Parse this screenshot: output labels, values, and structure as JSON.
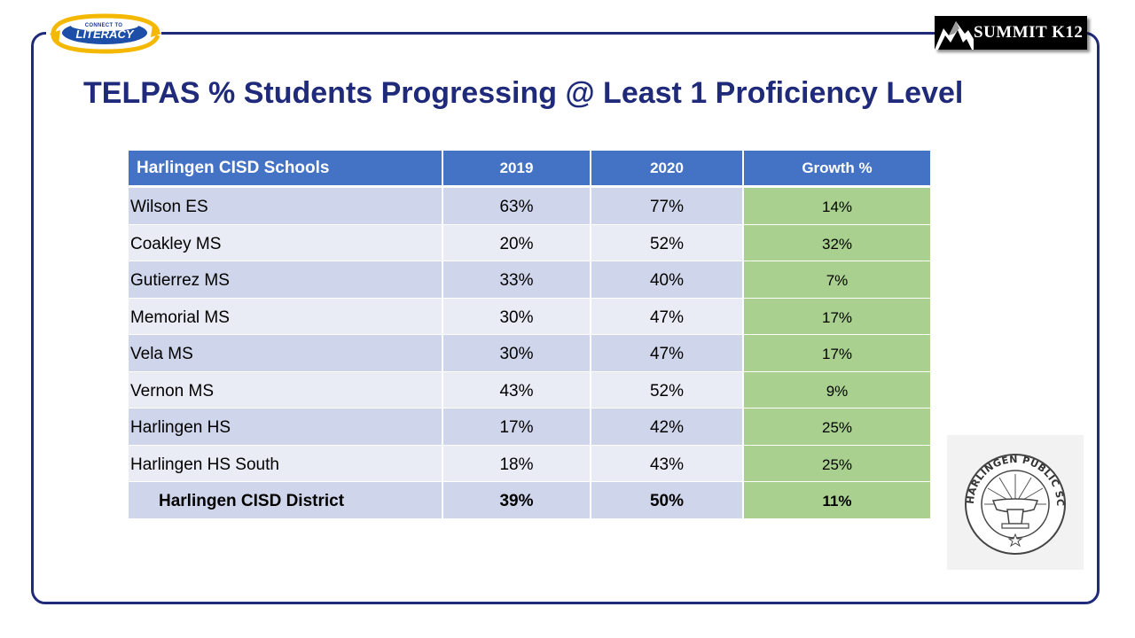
{
  "logos": {
    "left": {
      "top_text": "CONNECT TO",
      "main_text": "LITERACY"
    },
    "right": {
      "text": "SUMMIT K12"
    },
    "seal": {
      "text": "HARLINGEN PUBLIC SCHOOLS"
    }
  },
  "title": "TELPAS % Students Progressing @ Least 1 Proficiency Level",
  "table": {
    "headers": [
      "Harlingen CISD Schools",
      "2019",
      "2020",
      "Growth %"
    ],
    "rows": [
      {
        "school": "Wilson ES",
        "y2019": "63%",
        "y2020": "77%",
        "growth": "14%"
      },
      {
        "school": "Coakley MS",
        "y2019": "20%",
        "y2020": "52%",
        "growth": "32%"
      },
      {
        "school": "Gutierrez MS",
        "y2019": "33%",
        "y2020": "40%",
        "growth": "7%"
      },
      {
        "school": "Memorial MS",
        "y2019": "30%",
        "y2020": "47%",
        "growth": "17%"
      },
      {
        "school": "Vela MS",
        "y2019": "30%",
        "y2020": "47%",
        "growth": "17%"
      },
      {
        "school": "Vernon MS",
        "y2019": "43%",
        "y2020": "52%",
        "growth": "9%"
      },
      {
        "school": "Harlingen HS",
        "y2019": "17%",
        "y2020": "42%",
        "growth": "25%"
      },
      {
        "school": "Harlingen HS South",
        "y2019": "18%",
        "y2020": "43%",
        "growth": "25%"
      }
    ],
    "total": {
      "school": "Harlingen CISD District",
      "y2019": "39%",
      "y2020": "50%",
      "growth": "11%"
    }
  },
  "colors": {
    "title": "#1f2a7a",
    "header": "#4472c4",
    "row_dark": "#cfd5ea",
    "row_light": "#e9ebf5",
    "growth": "#a9d08e"
  }
}
